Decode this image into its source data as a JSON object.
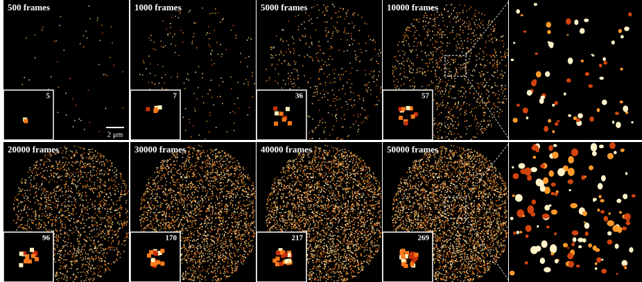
{
  "panels": [
    {
      "label": "500 frames",
      "inset_count": 5
    },
    {
      "label": "1000 frames",
      "inset_count": 7
    },
    {
      "label": "5000 frames",
      "inset_count": 36
    },
    {
      "label": "10000 frames",
      "inset_count": 57
    },
    {
      "label": "20000 frames",
      "inset_count": 96
    },
    {
      "label": "30000 frames",
      "inset_count": 170
    },
    {
      "label": "40000 frames",
      "inset_count": 217
    },
    {
      "label": "50000 frames",
      "inset_count": 269
    }
  ],
  "scale_bar": "2 μm"
}
